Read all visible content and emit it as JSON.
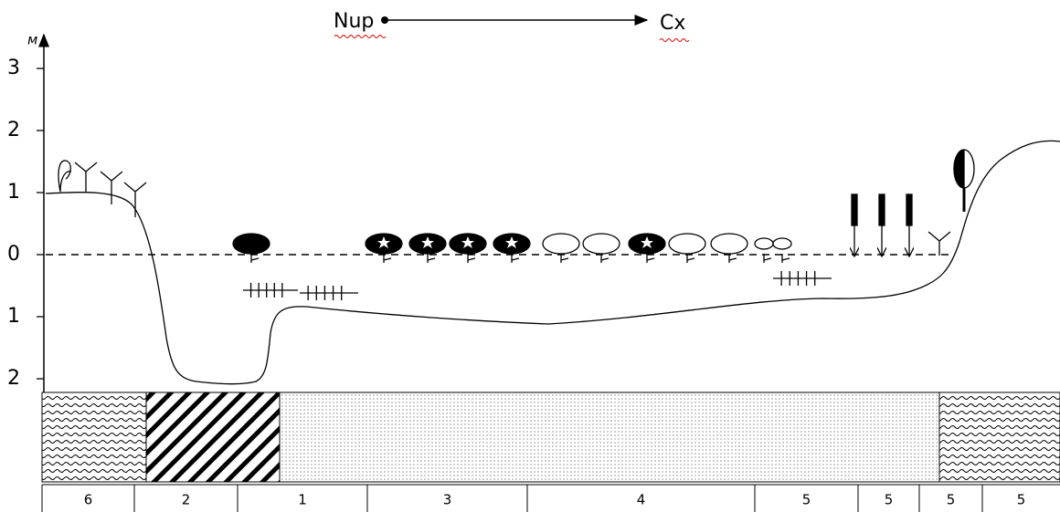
{
  "header": {
    "from": "Nup",
    "to": "Cx"
  },
  "axis": {
    "label": "м",
    "ticks": [
      "3",
      "2",
      "1",
      "0",
      "1",
      "2"
    ]
  },
  "cells": [
    "6",
    "2",
    "1",
    "3",
    "4",
    "5",
    "5",
    "5",
    "5"
  ]
}
